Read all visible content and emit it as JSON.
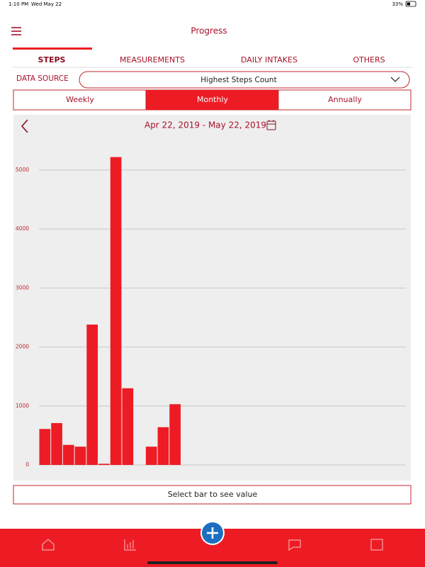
{
  "status_bar": {
    "time": "1:10 PM",
    "date": "Wed May 22",
    "battery": "33%"
  },
  "header": {
    "title": "Progress"
  },
  "tabs": [
    "STEPS",
    "MEASUREMENTS",
    "DAILY INTAKES",
    "OTHERS"
  ],
  "data_source": {
    "label": "DATA SOURCE",
    "value": "Highest Steps Count"
  },
  "periods": [
    "Weekly",
    "Monthly",
    "Annually"
  ],
  "chart_data": {
    "type": "bar",
    "subtitle": "Apr 22, 2019 - May 22, 2019",
    "categories": [
      null,
      null,
      null,
      null,
      null,
      null,
      null,
      null,
      null,
      null,
      null,
      null,
      null,
      null,
      null,
      null,
      null,
      null,
      null,
      null,
      null,
      null,
      null,
      null,
      null,
      null,
      null,
      null,
      null,
      null,
      null
    ],
    "values": [
      610,
      710,
      340,
      310,
      2380,
      20,
      5220,
      1300,
      0,
      310,
      640,
      1030,
      0,
      0,
      0,
      0,
      0,
      0,
      0,
      0,
      0,
      0,
      0,
      0,
      0,
      0,
      0,
      0,
      0,
      0,
      0
    ],
    "color": "#ed1c24",
    "ylim": [
      0,
      5600
    ],
    "yticks": [
      0,
      1000,
      2000,
      3000,
      4000,
      5000
    ],
    "grid": true
  },
  "footer": {
    "button": "Select bar to see value"
  }
}
